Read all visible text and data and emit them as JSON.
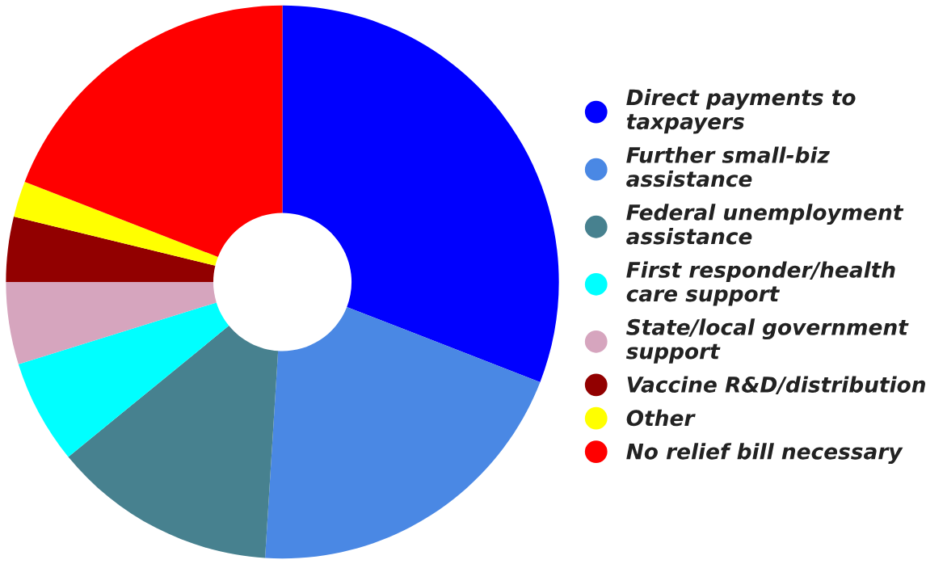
{
  "chart_data": {
    "type": "donut",
    "categories": [
      "Direct payments to\ntaxpayers",
      "Further small-biz\nassistance",
      "Federal unemployment\nassistance",
      "First responder/health\ncare support",
      "State/local government\nsupport",
      "Vaccine R&D/distribution",
      "Other",
      "No relief bill necessary"
    ],
    "values": [
      30.9,
      20.1,
      13.1,
      6.1,
      4.8,
      3.8,
      2.1,
      19.1
    ],
    "colors": [
      "#0000ff",
      "#4a88e4",
      "#47818f",
      "#00ffff",
      "#d6a5be",
      "#920000",
      "#ffff00",
      "#ff0000"
    ],
    "legend": "right"
  }
}
